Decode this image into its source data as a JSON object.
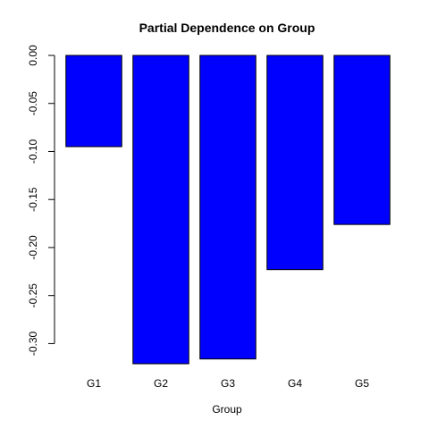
{
  "chart_data": {
    "type": "bar",
    "title": "Partial Dependence on Group",
    "xlabel": "Group",
    "ylabel": "",
    "categories": [
      "G1",
      "G2",
      "G3",
      "G4",
      "G5"
    ],
    "values": [
      -0.095,
      -0.321,
      -0.316,
      -0.223,
      -0.176
    ],
    "ylim": [
      -0.321,
      0.0
    ],
    "yticks": [
      0.0,
      -0.05,
      -0.1,
      -0.15,
      -0.2,
      -0.25,
      -0.3
    ],
    "ytick_labels": [
      "0.00",
      "-0.05",
      "-0.10",
      "-0.15",
      "-0.20",
      "-0.25",
      "-0.30"
    ],
    "bar_color": "#0000ff",
    "grid": false,
    "legend": "none"
  }
}
